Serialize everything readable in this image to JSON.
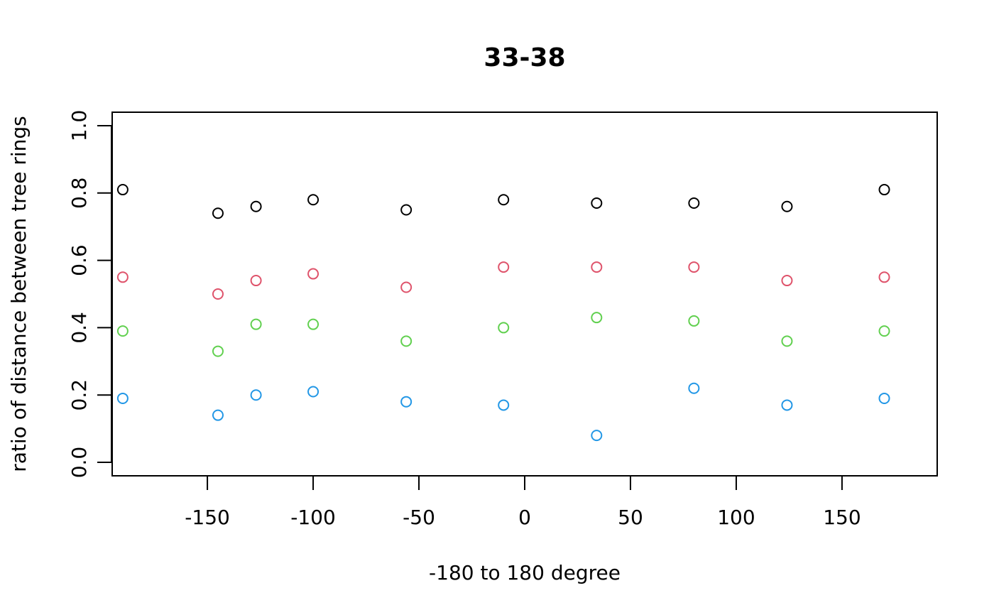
{
  "chart_data": {
    "type": "scatter",
    "title": "33-38",
    "xlabel": "-180 to 180 degree",
    "ylabel": "ratio of distance between tree rings",
    "xlim": [
      -195,
      195
    ],
    "ylim": [
      -0.04,
      1.04
    ],
    "xticks": [
      -150,
      -100,
      -50,
      0,
      50,
      100,
      150
    ],
    "xtick_labels": [
      "-150",
      "-100",
      "-50",
      "0",
      "50",
      "100",
      "150"
    ],
    "yticks": [
      0.0,
      0.2,
      0.4,
      0.6,
      0.8,
      1.0
    ],
    "ytick_labels": [
      "0.0",
      "0.2",
      "0.4",
      "0.6",
      "0.8",
      "1.0"
    ],
    "grid": false,
    "legend": "none",
    "x": [
      -190,
      -145,
      -127,
      -100,
      -56,
      -10,
      34,
      80,
      124,
      170
    ],
    "smooth_color": "#FF0000",
    "series": [
      {
        "color": "#000000",
        "values": [
          0.81,
          0.74,
          0.76,
          0.78,
          0.75,
          0.78,
          0.77,
          0.77,
          0.76,
          0.81
        ]
      },
      {
        "color": "#DF536B",
        "values": [
          0.55,
          0.5,
          0.54,
          0.56,
          0.52,
          0.58,
          0.58,
          0.58,
          0.54,
          0.55
        ]
      },
      {
        "color": "#61D04F",
        "values": [
          0.39,
          0.33,
          0.41,
          0.41,
          0.36,
          0.4,
          0.43,
          0.42,
          0.36,
          0.39
        ]
      },
      {
        "color": "#2297E6",
        "values": [
          0.19,
          0.14,
          0.2,
          0.21,
          0.18,
          0.17,
          0.08,
          0.22,
          0.17,
          0.19
        ]
      }
    ]
  }
}
